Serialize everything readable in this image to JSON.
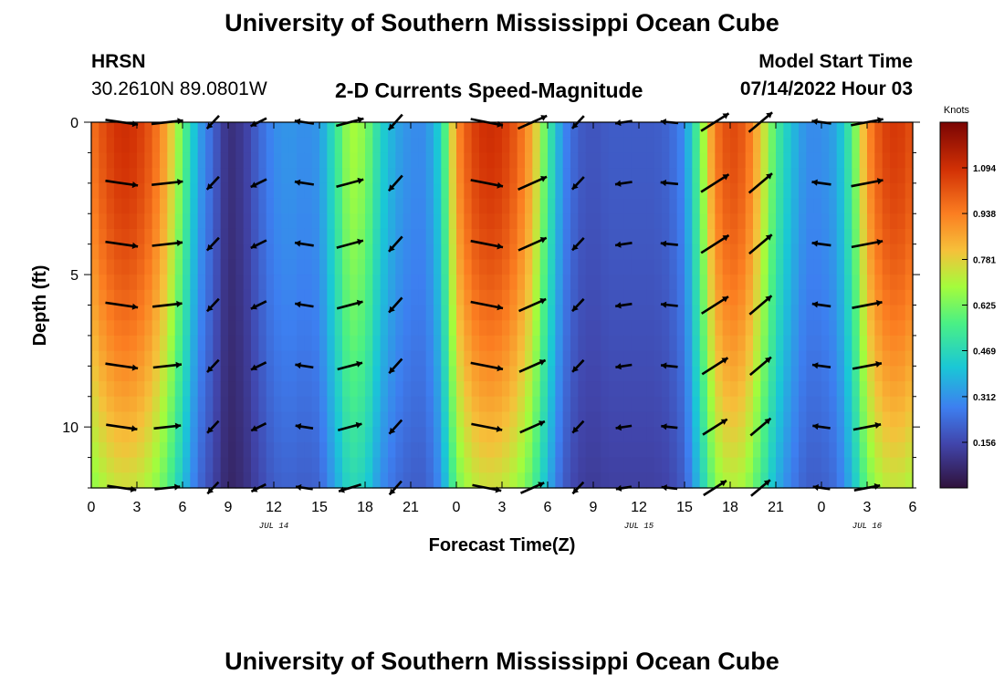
{
  "header": {
    "title": "University of Southern Mississippi Ocean Cube",
    "station": "HRSN",
    "coords": "30.2610N  89.0801W",
    "subtitle": "2-D Currents Speed-Magnitude",
    "model_start_label": "Model Start Time",
    "model_start_value": "07/14/2022 Hour 03"
  },
  "footer": {
    "title": "University of Southern Mississippi Ocean Cube"
  },
  "chart_data": {
    "type": "heatmap",
    "title": "2-D Currents Speed-Magnitude",
    "xlabel": "Forecast Time(Z)",
    "ylabel": "Depth (ft)",
    "x_range_hours": [
      0,
      54
    ],
    "y_range": [
      0,
      12
    ],
    "y_reversed": true,
    "x_tick_labels": [
      "0",
      "3",
      "6",
      "9",
      "12",
      "15",
      "18",
      "21",
      "0",
      "3",
      "6",
      "9",
      "12",
      "15",
      "18",
      "21",
      "0",
      "3",
      "6"
    ],
    "y_ticks": [
      0,
      5,
      10
    ],
    "date_labels": [
      {
        "label": "JUL 14",
        "hour": 12
      },
      {
        "label": "JUL 15",
        "hour": 36
      },
      {
        "label": "JUL 16",
        "hour": 51
      }
    ],
    "colorbar": {
      "unit": "Knots",
      "ticks": [
        0.156,
        0.312,
        0.469,
        0.625,
        0.781,
        0.938,
        1.094
      ],
      "range": [
        0.0,
        1.25
      ]
    },
    "speed_profile_hours": [
      0,
      1,
      2,
      3,
      4,
      5,
      6,
      7,
      8,
      9,
      10,
      11,
      12,
      13,
      14,
      15,
      16,
      17,
      18,
      19,
      20,
      21,
      22,
      23,
      24,
      25,
      26,
      27,
      28,
      29,
      30,
      31,
      32,
      33,
      34,
      35,
      36,
      37,
      38,
      39,
      40,
      41,
      42,
      43,
      44,
      45,
      46,
      47,
      48,
      49,
      50,
      51,
      52,
      53,
      54
    ],
    "speed_profile_surface": [
      0.95,
      1.05,
      1.1,
      1.08,
      1.0,
      0.85,
      0.6,
      0.35,
      0.22,
      0.08,
      0.12,
      0.22,
      0.3,
      0.32,
      0.3,
      0.32,
      0.5,
      0.7,
      0.65,
      0.45,
      0.35,
      0.3,
      0.3,
      0.45,
      0.9,
      1.05,
      1.1,
      1.08,
      1.0,
      0.85,
      0.55,
      0.3,
      0.2,
      0.18,
      0.2,
      0.2,
      0.2,
      0.2,
      0.22,
      0.3,
      0.6,
      0.95,
      1.05,
      1.0,
      0.8,
      0.55,
      0.4,
      0.3,
      0.3,
      0.35,
      0.55,
      0.9,
      1.05,
      1.08,
      1.02
    ],
    "arrow_hours": [
      2,
      5,
      8,
      11,
      14,
      17,
      20,
      26,
      29,
      32,
      35,
      38,
      41,
      44,
      48,
      51
    ],
    "arrow_depths": [
      0,
      2,
      4,
      6,
      8,
      10,
      12
    ]
  }
}
